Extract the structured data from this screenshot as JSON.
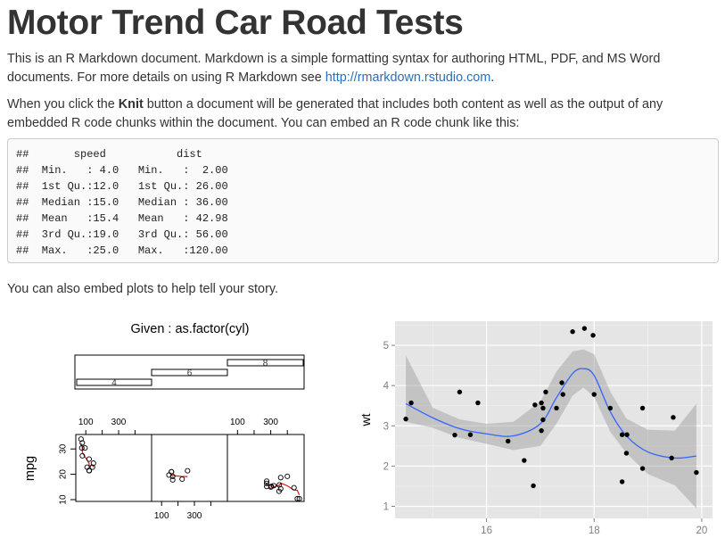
{
  "title": "Motor Trend Car Road Tests",
  "intro": {
    "text": "This is an R Markdown document. Markdown is a simple formatting syntax for authoring HTML, PDF, and MS Word documents. For more details on using R Markdown see ",
    "link": "http://rmarkdown.rstudio.com",
    "after": "."
  },
  "knit": {
    "pre": "When you click the ",
    "bold": "Knit",
    "post": " button a document will be generated that includes both content as well as the output of any embedded R code chunks within the document. You can embed an R code chunk like this:"
  },
  "code_lines": [
    "##       speed           dist       ",
    "##  Min.   : 4.0   Min.   :  2.00  ",
    "##  1st Qu.:12.0   1st Qu.: 26.00  ",
    "##  Median :15.0   Median : 36.00  ",
    "##  Mean   :15.4   Mean   : 42.98  ",
    "##  3rd Qu.:19.0   3rd Qu.: 56.00  ",
    "##  Max.   :25.0   Max.   :120.00  "
  ],
  "plots_intro": "You can also embed plots to help tell your story.",
  "chart_data": [
    {
      "type": "scatter",
      "title": "Given : as.factor(cyl)",
      "given_levels": [
        "4",
        "6",
        "8"
      ],
      "ylabel": "mpg",
      "ylim": [
        10,
        35
      ],
      "yticks": [
        10,
        20,
        30
      ],
      "xticks": [
        100,
        300
      ],
      "series": [
        {
          "name": "4",
          "x": [
            108,
            146.7,
            140.8,
            78.7,
            75.7,
            71.1,
            120.1,
            79,
            120.3,
            95.1,
            121
          ],
          "y": [
            22.8,
            24.4,
            22.8,
            32.4,
            30.4,
            33.9,
            21.5,
            27.3,
            26,
            30.4,
            21.4
          ]
        },
        {
          "name": "6",
          "x": [
            160,
            160,
            258,
            225,
            167.6,
            167.6,
            145
          ],
          "y": [
            21,
            21,
            21.4,
            18.1,
            19.2,
            17.8,
            19.7
          ]
        },
        {
          "name": "8",
          "x": [
            360,
            360,
            275.8,
            275.8,
            275.8,
            472,
            460,
            440,
            318,
            304,
            350,
            400,
            351,
            301
          ],
          "y": [
            18.7,
            14.3,
            16.4,
            17.3,
            15.2,
            10.4,
            10.4,
            14.7,
            15.5,
            15.2,
            13.3,
            19.2,
            15.8,
            15
          ]
        }
      ]
    },
    {
      "type": "scatter",
      "xlabel": "",
      "ylabel": "wt",
      "xlim": [
        14.3,
        20.2
      ],
      "ylim": [
        0.7,
        5.6
      ],
      "xticks": [
        16,
        18,
        20
      ],
      "yticks": [
        1,
        2,
        3,
        4,
        5
      ],
      "x": [
        14.5,
        14.6,
        15.5,
        15.7,
        16.4,
        16.87,
        17.02,
        17.05,
        17.3,
        17.4,
        17.82,
        17.98,
        18.0,
        18.3,
        18.52,
        18.6,
        18.61,
        18.9,
        18.9,
        19.44,
        19.47,
        19.9,
        17.6,
        17.42,
        18.52,
        17.02,
        17.1,
        16.7,
        15.84,
        15.41,
        17.05,
        16.9
      ],
      "y": [
        3.17,
        3.57,
        3.84,
        2.78,
        2.62,
        1.51,
        2.88,
        3.44,
        3.44,
        4.07,
        5.42,
        5.25,
        3.78,
        3.44,
        1.61,
        2.32,
        2.78,
        3.44,
        1.94,
        2.2,
        3.21,
        1.84,
        5.34,
        3.78,
        2.78,
        3.57,
        3.84,
        2.14,
        3.57,
        2.77,
        3.15,
        3.52
      ],
      "smooth": {
        "x": [
          14.5,
          15.0,
          15.5,
          16.0,
          16.5,
          17.0,
          17.3,
          17.6,
          17.8,
          18.0,
          18.3,
          18.6,
          19.0,
          19.5,
          19.9
        ],
        "y": [
          3.55,
          3.2,
          2.93,
          2.8,
          2.75,
          3.05,
          3.7,
          4.3,
          4.42,
          4.25,
          3.35,
          2.75,
          2.35,
          2.2,
          2.25
        ],
        "lo": [
          3.1,
          2.95,
          2.7,
          2.55,
          2.4,
          2.5,
          3.05,
          3.75,
          3.95,
          3.72,
          2.85,
          2.32,
          1.8,
          1.52,
          0.95
        ],
        "hi": [
          4.75,
          3.45,
          3.16,
          3.05,
          3.1,
          3.6,
          4.35,
          4.85,
          4.9,
          4.78,
          3.85,
          3.18,
          2.9,
          2.88,
          3.55
        ]
      }
    }
  ]
}
